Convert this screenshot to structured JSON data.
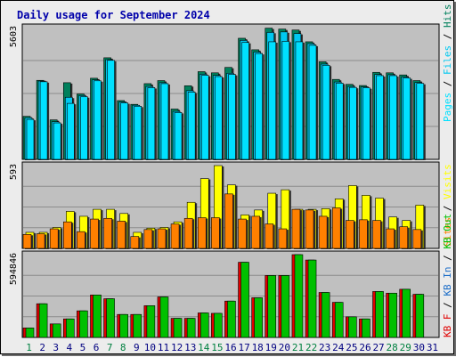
{
  "title": "Daily usage for September 2024",
  "colors": {
    "title": "#0000aa",
    "panel_bg": "#c0c0c0",
    "frame_bg": "#ececec",
    "hits": "#00805c",
    "files": "#00c8f0",
    "pages": "#00e0ff",
    "visits": "#ffff00",
    "sites": "#ff8000",
    "kbin": "#1e6ec8",
    "kbout": "#00c000",
    "kbf": "#e00000",
    "weekend": "#008040",
    "weekday": "#000080"
  },
  "labels": {
    "hits": "Hits",
    "files": "Files",
    "pages": "Pages",
    "visits": "Visits",
    "sites": "Sites",
    "kbout": "KB Out",
    "kbin": "KB In",
    "kbf": "KB F"
  },
  "panel_max_labels": {
    "top": "5603",
    "middle": "593",
    "bottom": "594846"
  },
  "chart_data": [
    {
      "type": "bar",
      "panel": "hits-files-pages",
      "categories": [
        "1",
        "2",
        "3",
        "4",
        "5",
        "6",
        "7",
        "8",
        "9",
        "10",
        "11",
        "12",
        "13",
        "14",
        "15",
        "16",
        "17",
        "18",
        "19",
        "20",
        "21",
        "22",
        "23",
        "24",
        "25",
        "26",
        "27",
        "28",
        "29",
        "30",
        "31"
      ],
      "weekend_days": [
        "1",
        "7",
        "8",
        "14",
        "15",
        "21",
        "22",
        "28",
        "29"
      ],
      "ylim": [
        0,
        5603
      ],
      "series": [
        {
          "name": "Hits",
          "values": [
            1830,
            3360,
            1680,
            3260,
            2780,
            3450,
            4320,
            2500,
            2340,
            3220,
            3350,
            2140,
            3130,
            3730,
            3680,
            3910,
            5150,
            4660,
            5580,
            5540,
            5500,
            5000,
            4150,
            3400,
            3190,
            3140,
            3700,
            3680,
            3590,
            3350,
            0
          ]
        },
        {
          "name": "Files",
          "values": [
            1770,
            3330,
            1600,
            2640,
            2710,
            3380,
            4240,
            2440,
            2300,
            3100,
            3260,
            2040,
            2920,
            3620,
            3570,
            3660,
            5060,
            4560,
            5400,
            5420,
            5350,
            4920,
            4050,
            3290,
            3100,
            3080,
            3610,
            3600,
            3500,
            3270,
            0
          ]
        },
        {
          "name": "Pages",
          "values": [
            1700,
            3300,
            1550,
            2380,
            2660,
            3340,
            4210,
            2400,
            2260,
            3050,
            3220,
            1990,
            2860,
            3570,
            3520,
            3610,
            4970,
            4500,
            5000,
            5020,
            5000,
            4850,
            4000,
            3240,
            3060,
            3040,
            3560,
            3560,
            3460,
            3230,
            0
          ]
        }
      ]
    },
    {
      "type": "bar",
      "panel": "visits-sites",
      "categories": [
        "1",
        "2",
        "3",
        "4",
        "5",
        "6",
        "7",
        "8",
        "9",
        "10",
        "11",
        "12",
        "13",
        "14",
        "15",
        "16",
        "17",
        "18",
        "19",
        "20",
        "21",
        "22",
        "23",
        "24",
        "25",
        "26",
        "27",
        "28",
        "29",
        "30",
        "31"
      ],
      "ylim": [
        0,
        593
      ],
      "series": [
        {
          "name": "Visits",
          "values": [
            115,
            115,
            150,
            265,
            230,
            280,
            280,
            250,
            115,
            145,
            150,
            190,
            330,
            500,
            593,
            455,
            240,
            275,
            395,
            420,
            280,
            280,
            285,
            355,
            450,
            380,
            360,
            225,
            200,
            310,
            0
          ]
        },
        {
          "name": "Sites",
          "values": [
            100,
            105,
            140,
            190,
            120,
            210,
            215,
            195,
            85,
            135,
            140,
            175,
            215,
            220,
            220,
            390,
            210,
            230,
            175,
            140,
            280,
            275,
            230,
            290,
            200,
            205,
            200,
            140,
            155,
            135,
            0
          ]
        }
      ]
    },
    {
      "type": "bar",
      "panel": "kb",
      "categories": [
        "1",
        "2",
        "3",
        "4",
        "5",
        "6",
        "7",
        "8",
        "9",
        "10",
        "11",
        "12",
        "13",
        "14",
        "15",
        "16",
        "17",
        "18",
        "19",
        "20",
        "21",
        "22",
        "23",
        "24",
        "25",
        "26",
        "27",
        "28",
        "29",
        "30",
        "31"
      ],
      "ylim": [
        0,
        594846
      ],
      "series": [
        {
          "name": "KB F",
          "values": [
            0,
            0,
            0,
            0,
            0,
            0,
            0,
            0,
            0,
            0,
            0,
            0,
            0,
            0,
            0,
            0,
            0,
            0,
            0,
            0,
            0,
            0,
            0,
            0,
            0,
            0,
            0,
            0,
            0,
            0,
            0
          ]
        },
        {
          "name": "KB Out",
          "values": [
            68000,
            242000,
            97000,
            133000,
            191000,
            305000,
            278000,
            165000,
            165000,
            228000,
            291000,
            137000,
            137000,
            176000,
            173000,
            261000,
            540000,
            285000,
            445000,
            445000,
            594846,
            556000,
            323000,
            252000,
            148000,
            133000,
            330000,
            318000,
            346000,
            310000,
            0
          ]
        }
      ]
    }
  ]
}
